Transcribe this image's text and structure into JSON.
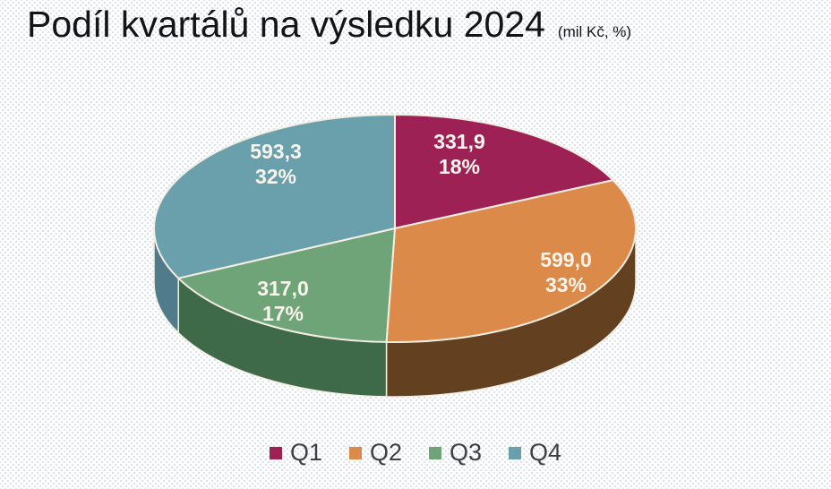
{
  "header": {
    "title": "Podíl kvartálů na výsledku 2024",
    "units": "(mil Kč, %)"
  },
  "chart_data": {
    "type": "pie",
    "effect": "3d",
    "title": "Podíl kvartálů na výsledku 2024",
    "subtitle_units": "(mil Kč, %)",
    "categories": [
      "Q1",
      "Q2",
      "Q3",
      "Q4"
    ],
    "values": [
      331.9,
      599.0,
      317.0,
      593.3
    ],
    "value_labels": [
      "331,9",
      "599,0",
      "317,0",
      "593,3"
    ],
    "percent_labels": [
      "18%",
      "33%",
      "17%",
      "32%"
    ],
    "colors": [
      "#9E2156",
      "#DB8A49",
      "#6FA478",
      "#6A9FAC"
    ],
    "side_colors": [
      "#6E1A42",
      "#63401F",
      "#3F6A4A",
      "#4F7B8B"
    ],
    "divider_color": "#F3EEE2",
    "slice_label_color": "#FAF5EC",
    "legend_text_color": "#3F3F3F",
    "start_angle": 0,
    "legend_position": "bottom",
    "grid": false
  }
}
